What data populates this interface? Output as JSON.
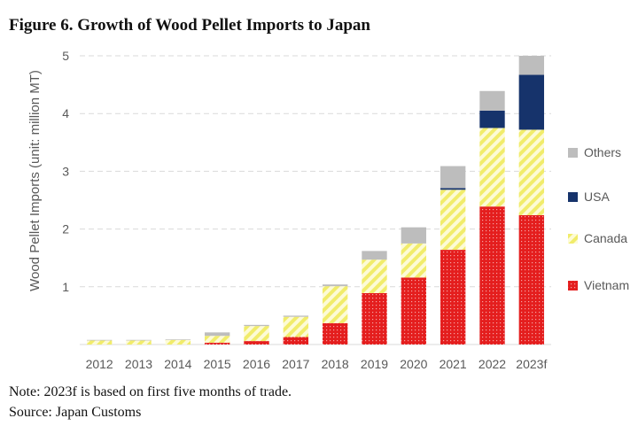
{
  "figure_title": "Figure 6. Growth of Wood Pellet Imports to Japan",
  "note": "Note: 2023f is based on first five months of trade.",
  "source": "Source: Japan Customs",
  "colors": {
    "Vietnam": "#e41e1e",
    "Canada": "#f3f08a",
    "USA": "#16336b",
    "Others": "#bdbdbd",
    "grid": "#d9d9d9",
    "axis_text": "#595959"
  },
  "chart_data": {
    "type": "bar",
    "stacked": true,
    "title": "Figure 6. Growth of Wood Pellet Imports to Japan",
    "xlabel": "",
    "ylabel": "Wood Pellet Imports (unit: million MT)",
    "ylim": [
      0,
      5
    ],
    "yticks": [
      "",
      "1",
      "2",
      "3",
      "4",
      "5"
    ],
    "grid": true,
    "legend_position": "right",
    "categories": [
      "2012",
      "2013",
      "2014",
      "2015",
      "2016",
      "2017",
      "2018",
      "2019",
      "2020",
      "2021",
      "2022",
      "2023f"
    ],
    "series": [
      {
        "name": "Vietnam",
        "pattern": "dots",
        "values": [
          0.0,
          0.0,
          0.0,
          0.03,
          0.06,
          0.13,
          0.37,
          0.89,
          1.16,
          1.64,
          2.39,
          2.24
        ]
      },
      {
        "name": "Canada",
        "pattern": "hatch",
        "values": [
          0.07,
          0.07,
          0.08,
          0.12,
          0.26,
          0.35,
          0.64,
          0.58,
          0.59,
          1.04,
          1.36,
          1.48
        ]
      },
      {
        "name": "USA",
        "pattern": "solid",
        "values": [
          0.0,
          0.0,
          0.0,
          0.0,
          0.0,
          0.0,
          0.0,
          0.0,
          0.0,
          0.03,
          0.3,
          0.95
        ]
      },
      {
        "name": "Others",
        "pattern": "solid",
        "values": [
          0.01,
          0.01,
          0.01,
          0.06,
          0.02,
          0.02,
          0.03,
          0.15,
          0.28,
          0.38,
          0.34,
          0.33
        ]
      }
    ],
    "legend_order": [
      "Others",
      "USA",
      "Canada",
      "Vietnam"
    ]
  }
}
